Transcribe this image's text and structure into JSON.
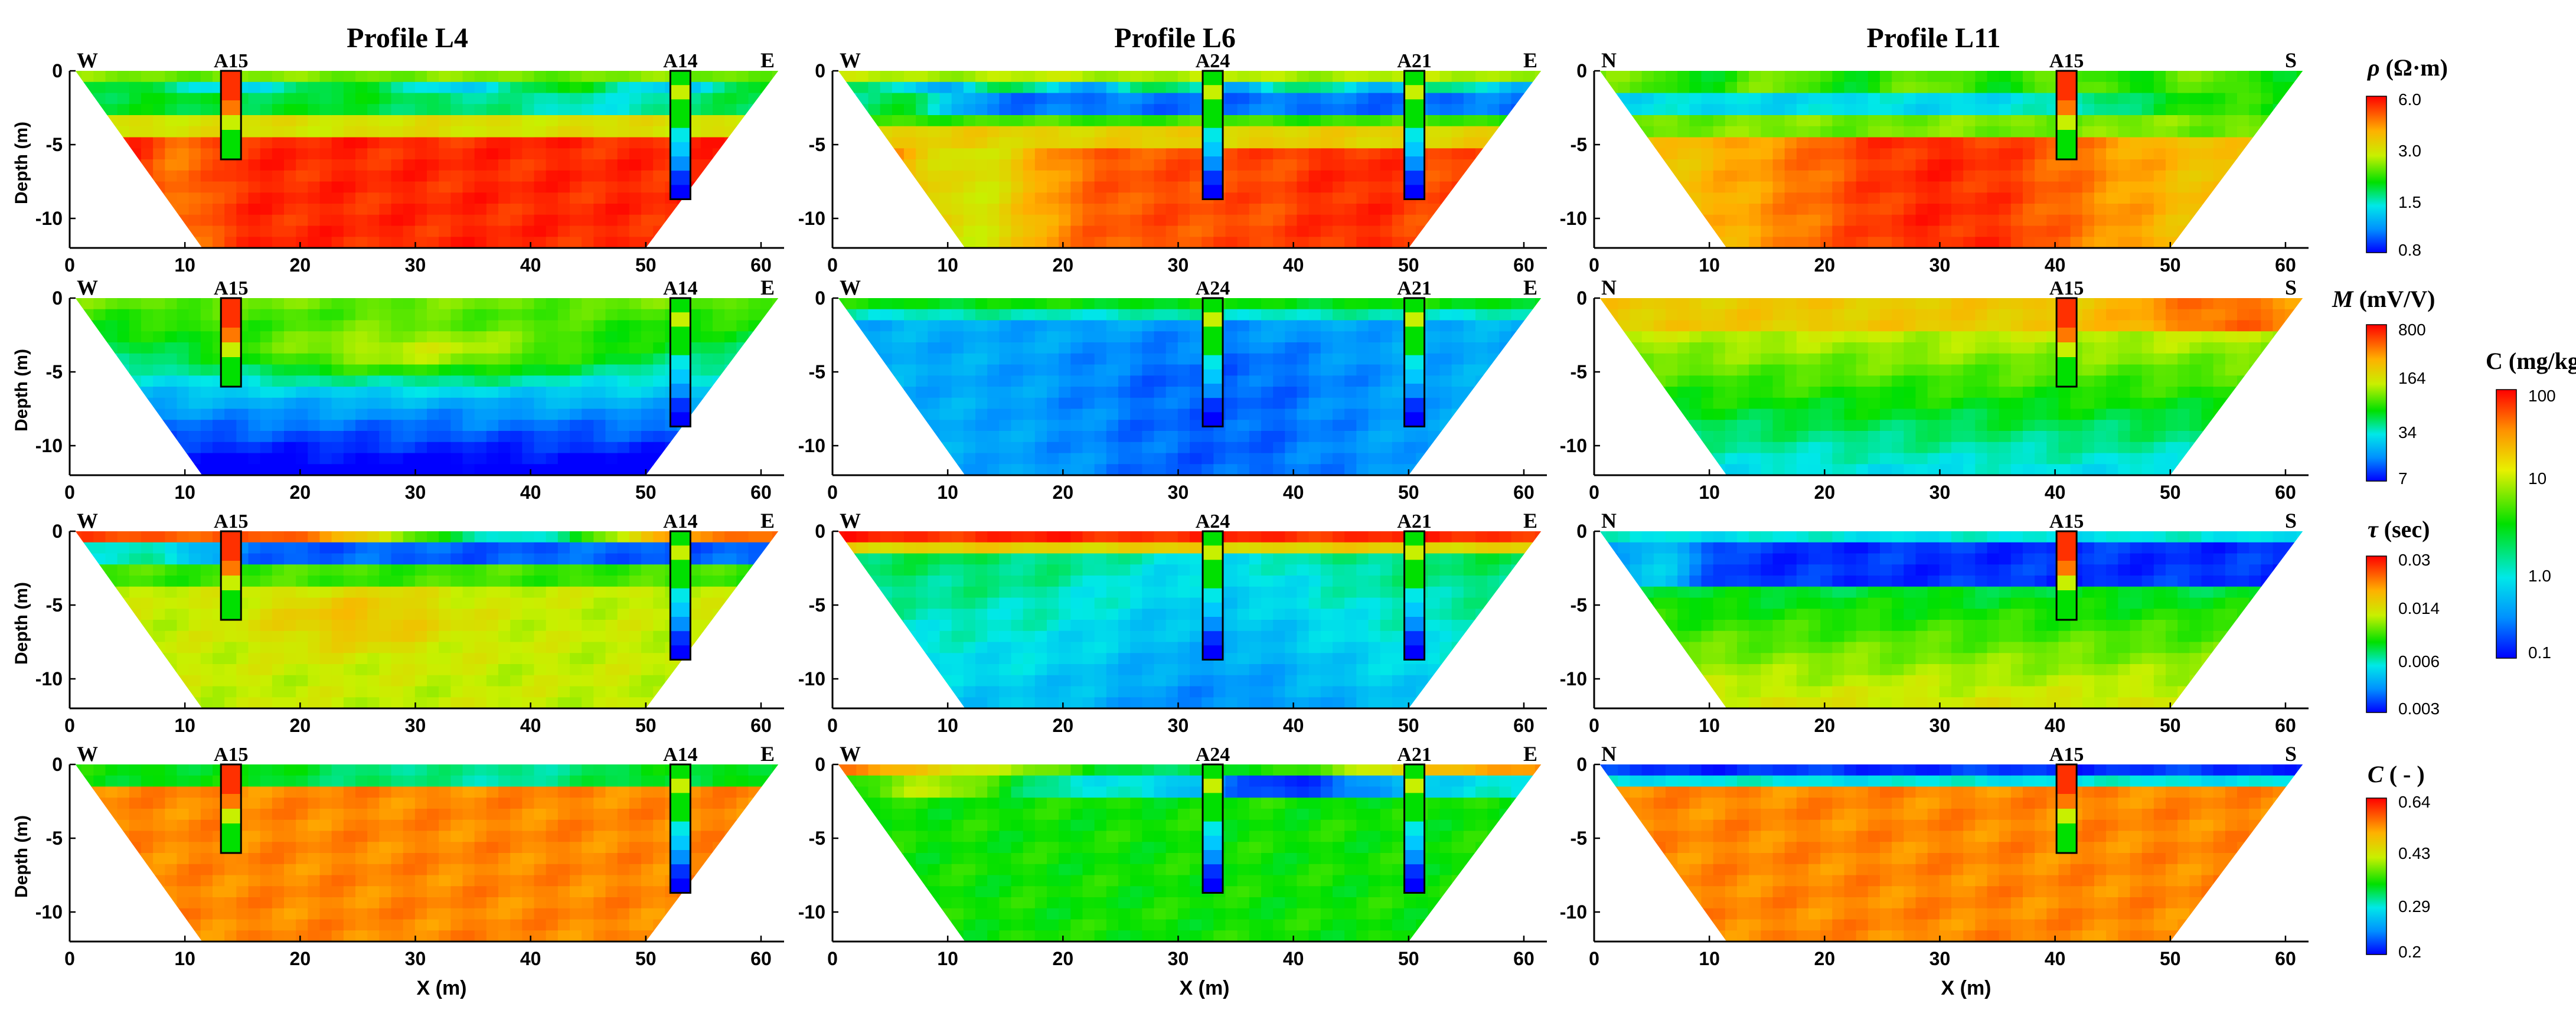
{
  "figure": {
    "columns": [
      {
        "title": "Profile L4",
        "left_end": "W",
        "right_end": "E",
        "wells": [
          {
            "label": "A15",
            "x": 14,
            "depth": 6
          },
          {
            "label": "A14",
            "x": 53,
            "depth": 8.7
          }
        ]
      },
      {
        "title": "Profile L6",
        "left_end": "W",
        "right_end": "E",
        "wells": [
          {
            "label": "A24",
            "x": 33,
            "depth": 8.7
          },
          {
            "label": "A21",
            "x": 50.5,
            "depth": 8.7
          }
        ]
      },
      {
        "title": "Profile L11",
        "left_end": "N",
        "right_end": "S",
        "wells": [
          {
            "label": "A15",
            "x": 41,
            "depth": 6
          }
        ]
      }
    ],
    "y_axis_label": "Depth (m)",
    "x_axis_label": "X (m)",
    "x_ticks": [
      "0",
      "10",
      "20",
      "30",
      "40",
      "50",
      "60"
    ],
    "y_ticks": [
      "0",
      "-5",
      "-10"
    ],
    "rows": [
      {
        "quantity": "ρ",
        "unit": "(Ω·m)",
        "legend_ticks": [
          "6.0",
          "3.0",
          "1.5",
          "0.8"
        ]
      },
      {
        "quantity": "M",
        "unit": "(mV/V)",
        "legend_ticks": [
          "800",
          "164",
          "34",
          "7"
        ]
      },
      {
        "quantity": "τ",
        "unit": "(sec)",
        "legend_ticks": [
          "0.03",
          "0.014",
          "0.006",
          "0.003"
        ]
      },
      {
        "quantity": "C",
        "unit": "( - )",
        "legend_ticks": [
          "0.64",
          "0.43",
          "0.29",
          "0.2"
        ]
      }
    ],
    "concentration_legend": {
      "title": "C (mg/kg)",
      "ticks": [
        "100",
        "10",
        "1.0",
        "0.1"
      ]
    }
  },
  "chart_data": {
    "type": "heatmap",
    "description_of_axes": {
      "xlabel": "X (m)",
      "ylabel": "Depth (m)",
      "xlim": [
        0,
        62
      ],
      "ylim": [
        -12,
        0
      ]
    },
    "panels": [
      {
        "profile": "Profile L4",
        "quantity": "ρ (Ω·m)",
        "dominant_deep": "6.0",
        "dominant_shallow": "3.0"
      },
      {
        "profile": "Profile L6",
        "quantity": "ρ (Ω·m)",
        "dominant_deep": "6.0",
        "dominant_shallow": "1.5"
      },
      {
        "profile": "Profile L11",
        "quantity": "ρ (Ω·m)",
        "dominant_deep": "6.0",
        "dominant_shallow": "3.0"
      },
      {
        "profile": "Profile L4",
        "quantity": "M (mV/V)",
        "dominant_deep": "34",
        "dominant_shallow": "164"
      },
      {
        "profile": "Profile L6",
        "quantity": "M (mV/V)",
        "dominant_deep": "7",
        "dominant_shallow": "34"
      },
      {
        "profile": "Profile L11",
        "quantity": "M (mV/V)",
        "dominant_deep": "164",
        "dominant_shallow": "800"
      },
      {
        "profile": "Profile L4",
        "quantity": "τ (sec)",
        "dominant_deep": "0.014",
        "dominant_shallow": "0.006"
      },
      {
        "profile": "Profile L6",
        "quantity": "τ (sec)",
        "dominant_deep": "0.006",
        "dominant_shallow": "0.03"
      },
      {
        "profile": "Profile L11",
        "quantity": "τ (sec)",
        "dominant_deep": "0.014",
        "dominant_shallow": "0.003"
      },
      {
        "profile": "Profile L4",
        "quantity": "C ( - )",
        "dominant_deep": "0.64",
        "dominant_shallow": "0.43"
      },
      {
        "profile": "Profile L6",
        "quantity": "C ( - )",
        "dominant_deep": "0.43",
        "dominant_shallow": "0.2"
      },
      {
        "profile": "Profile L11",
        "quantity": "C ( - )",
        "dominant_deep": "0.64",
        "dominant_shallow": "0.2"
      }
    ]
  }
}
